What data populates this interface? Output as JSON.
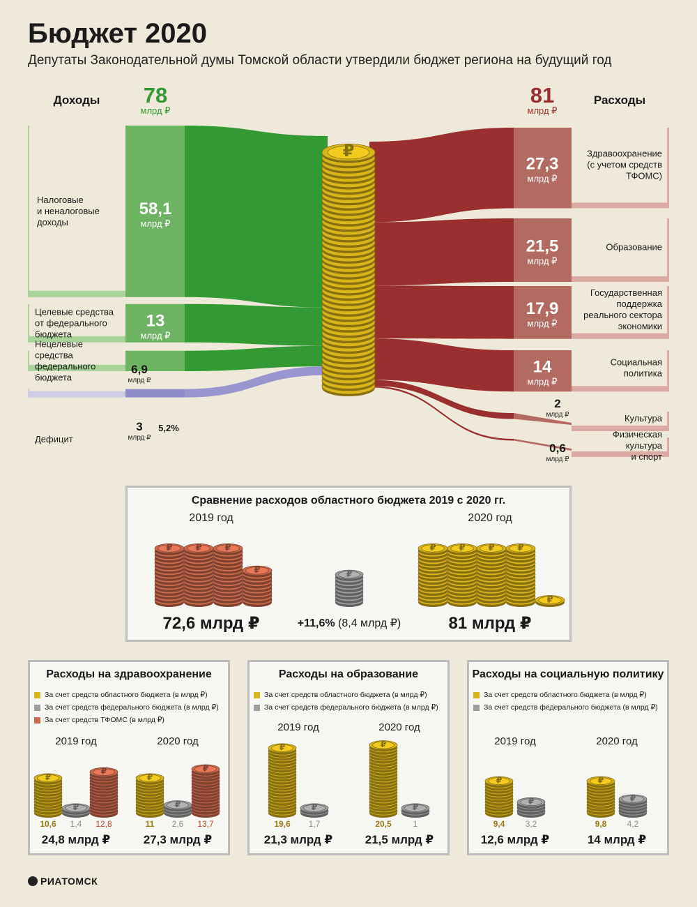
{
  "header": {
    "title": "Бюджет 2020",
    "subtitle": "Депутаты Законодательной думы Томской области утвердили бюджет региона на будущий год"
  },
  "colors": {
    "income": "#339933",
    "income_light": "#6cb462",
    "income_side": "#a9d39b",
    "expense": "#9a2f2f",
    "expense_light": "#b36a63",
    "expense_side": "#d9aba4",
    "deficit": "#8f8ccc",
    "gold": "#d9b51c",
    "silver": "#9e9e9e",
    "copper": "#cf6b4d"
  },
  "chart_data": [
    {
      "type": "sankey",
      "title": "Бюджет 2020",
      "income": {
        "heading": "Доходы",
        "total": "78",
        "unit": "млрд ₽",
        "items": [
          {
            "label": "Налоговые и неналоговые доходы",
            "value": 58.1,
            "value_label": "58,1",
            "unit": "млрд ₽"
          },
          {
            "label": "Целевые средства от федерального бюджета",
            "value": 13,
            "value_label": "13",
            "unit": "млрд ₽"
          },
          {
            "label": "Нецелевые средства федерального бюджета",
            "value": 6.9,
            "value_label": "6,9",
            "unit": "млрд ₽"
          },
          {
            "label": "Дефицит",
            "value": 3,
            "value_label": "3",
            "unit": "млрд ₽",
            "share_label": "5,2%"
          }
        ]
      },
      "expenses": {
        "heading": "Расходы",
        "total": "81",
        "unit": "млрд ₽",
        "items": [
          {
            "label": "Здравоохранение (с учетом средств ТФОМС)",
            "value": 27.3,
            "value_label": "27,3",
            "unit": "млрд ₽"
          },
          {
            "label": "Образование",
            "value": 21.5,
            "value_label": "21,5",
            "unit": "млрд ₽"
          },
          {
            "label": "Государственная поддержка реального сектора экономики",
            "value": 17.9,
            "value_label": "17,9",
            "unit": "млрд ₽"
          },
          {
            "label": "Социальная политика",
            "value": 14,
            "value_label": "14",
            "unit": "млрд ₽"
          },
          {
            "label": "Культура",
            "value": 2,
            "value_label": "2",
            "unit": "млрд ₽"
          },
          {
            "label": "Физическая культура и спорт",
            "value": 0.6,
            "value_label": "0,6",
            "unit": "млрд ₽"
          }
        ]
      }
    },
    {
      "type": "bar",
      "title": "Сравнение расходов областного бюджета 2019 с 2020 гг.",
      "categories": [
        "2019 год",
        "2020 год"
      ],
      "values": [
        72.6,
        81
      ],
      "value_labels": [
        "72,6 млрд ₽",
        "81 млрд ₽"
      ],
      "change_label": "+11,6%",
      "change_detail": "(8,4 млрд ₽)"
    },
    {
      "type": "bar",
      "title": "Расходы на здравоохранение",
      "legend": [
        "За счет средств областного бюджета (в млрд ₽)",
        "За счет средств федерального бюджета (в млрд ₽)",
        "За счет средств ТФОМС (в млрд ₽)"
      ],
      "categories": [
        "2019 год",
        "2020 год"
      ],
      "series": [
        {
          "values": [
            10.6,
            11
          ],
          "labels": [
            "10,6",
            "11"
          ]
        },
        {
          "values": [
            1.4,
            2.6
          ],
          "labels": [
            "1,4",
            "2,6"
          ]
        },
        {
          "values": [
            12.8,
            13.7
          ],
          "labels": [
            "12,8",
            "13,7"
          ]
        }
      ],
      "totals": [
        "24,8 млрд ₽",
        "27,3 млрд ₽"
      ]
    },
    {
      "type": "bar",
      "title": "Расходы на образование",
      "legend": [
        "За счет средств областного бюджета (в млрд ₽)",
        "За счет средств федерального бюджета (в млрд ₽)"
      ],
      "categories": [
        "2019 год",
        "2020 год"
      ],
      "series": [
        {
          "values": [
            19.6,
            20.5
          ],
          "labels": [
            "19,6",
            "20,5"
          ]
        },
        {
          "values": [
            1.7,
            1
          ],
          "labels": [
            "1,7",
            "1"
          ]
        }
      ],
      "totals": [
        "21,3 млрд ₽",
        "21,5 млрд ₽"
      ]
    },
    {
      "type": "bar",
      "title": "Расходы на социальную политику",
      "legend": [
        "За счет средств областного бюджета (в млрд ₽)",
        "За счет средств федерального бюджета (в млрд ₽)"
      ],
      "categories": [
        "2019 год",
        "2020 год"
      ],
      "series": [
        {
          "values": [
            9.4,
            9.8
          ],
          "labels": [
            "9,4",
            "9,8"
          ]
        },
        {
          "values": [
            3.2,
            4.2
          ],
          "labels": [
            "3,2",
            "4,2"
          ]
        }
      ],
      "totals": [
        "12,6 млрд ₽",
        "14 млрд ₽"
      ]
    }
  ],
  "footer": {
    "logo": "РИАТОМСК"
  }
}
